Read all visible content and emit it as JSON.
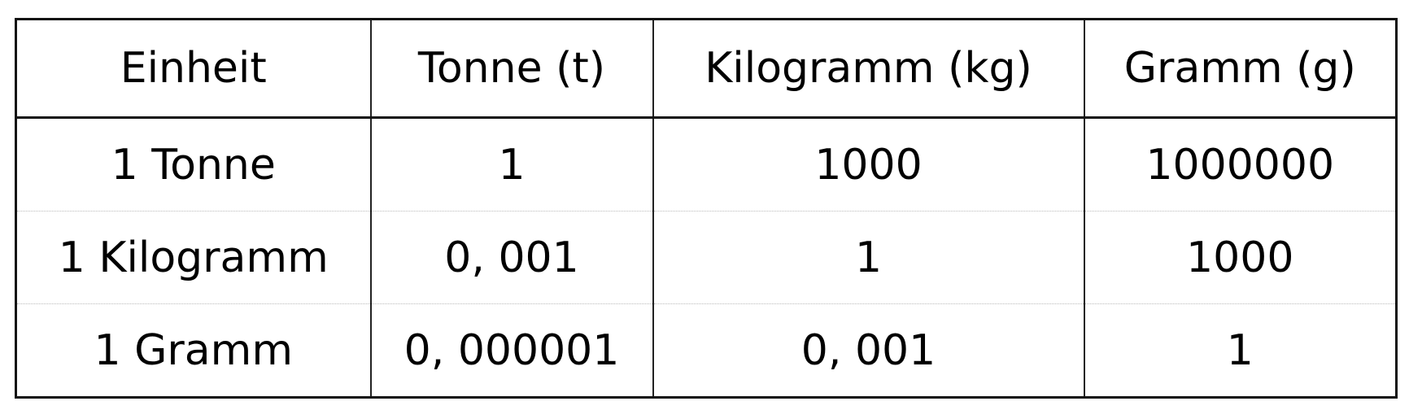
{
  "table": {
    "headers": [
      "Einheit",
      "Tonne (t)",
      "Kilogramm (kg)",
      "Gramm (g)"
    ],
    "rows": [
      [
        "1 Tonne",
        "1",
        "1000",
        "1000000"
      ],
      [
        "1 Kilogramm",
        "0, 001",
        "1",
        "1000"
      ],
      [
        "1 Gramm",
        "0, 000001",
        "0, 001",
        "1"
      ]
    ]
  }
}
